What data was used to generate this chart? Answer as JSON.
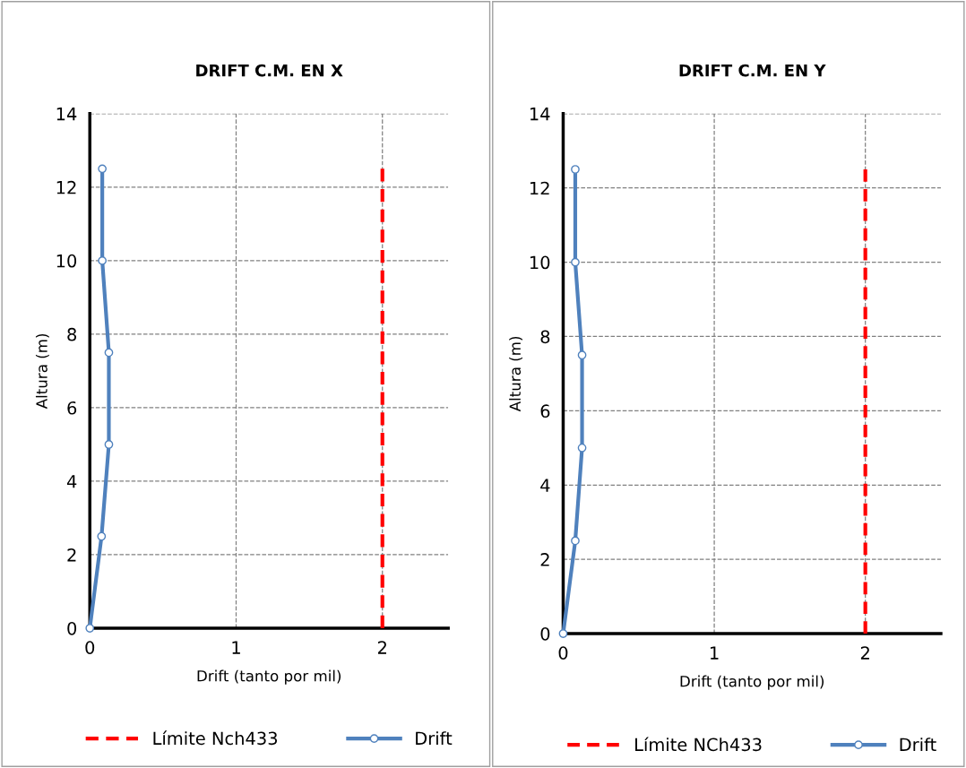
{
  "chart_data": [
    {
      "type": "line",
      "title": "DRIFT C.M. EN X",
      "xlabel": "Drift (tanto por mil)",
      "ylabel": "Altura (m)",
      "xlim": [
        0,
        2.45
      ],
      "ylim": [
        0,
        14
      ],
      "xticks": [
        0,
        1,
        2
      ],
      "yticks": [
        0,
        2,
        4,
        6,
        8,
        10,
        12,
        14
      ],
      "grid": true,
      "legend": "bottom",
      "series": [
        {
          "name": "Límite Nch433",
          "color": "#ff0000",
          "x": [
            2,
            2
          ],
          "values": [
            0,
            12.5
          ],
          "line_style": "dashed",
          "marker": "none"
        },
        {
          "name": "Drift",
          "color": "#4f81bd",
          "x": [
            0,
            0.08,
            0.13,
            0.13,
            0.085,
            0.085
          ],
          "values": [
            0,
            2.5,
            5,
            7.5,
            10,
            12.5
          ],
          "line_style": "solid",
          "marker": "circle"
        }
      ]
    },
    {
      "type": "line",
      "title": "DRIFT C.M. EN Y",
      "xlabel": "Drift (tanto por mil)",
      "ylabel": "Altura (m)",
      "xlim": [
        0,
        2.5
      ],
      "ylim": [
        0,
        14
      ],
      "xticks": [
        0,
        1,
        2
      ],
      "yticks": [
        0,
        2,
        4,
        6,
        8,
        10,
        12,
        14
      ],
      "grid": true,
      "legend": "bottom",
      "series": [
        {
          "name": "Límite NCh433",
          "color": "#ff0000",
          "x": [
            2,
            2
          ],
          "values": [
            0,
            12.5
          ],
          "line_style": "dashed",
          "marker": "none"
        },
        {
          "name": "Drift",
          "color": "#4f81bd",
          "x": [
            0,
            0.08,
            0.125,
            0.125,
            0.08,
            0.08
          ],
          "values": [
            0,
            2.5,
            5,
            7.5,
            10,
            12.5
          ],
          "line_style": "solid",
          "marker": "circle"
        }
      ]
    }
  ]
}
